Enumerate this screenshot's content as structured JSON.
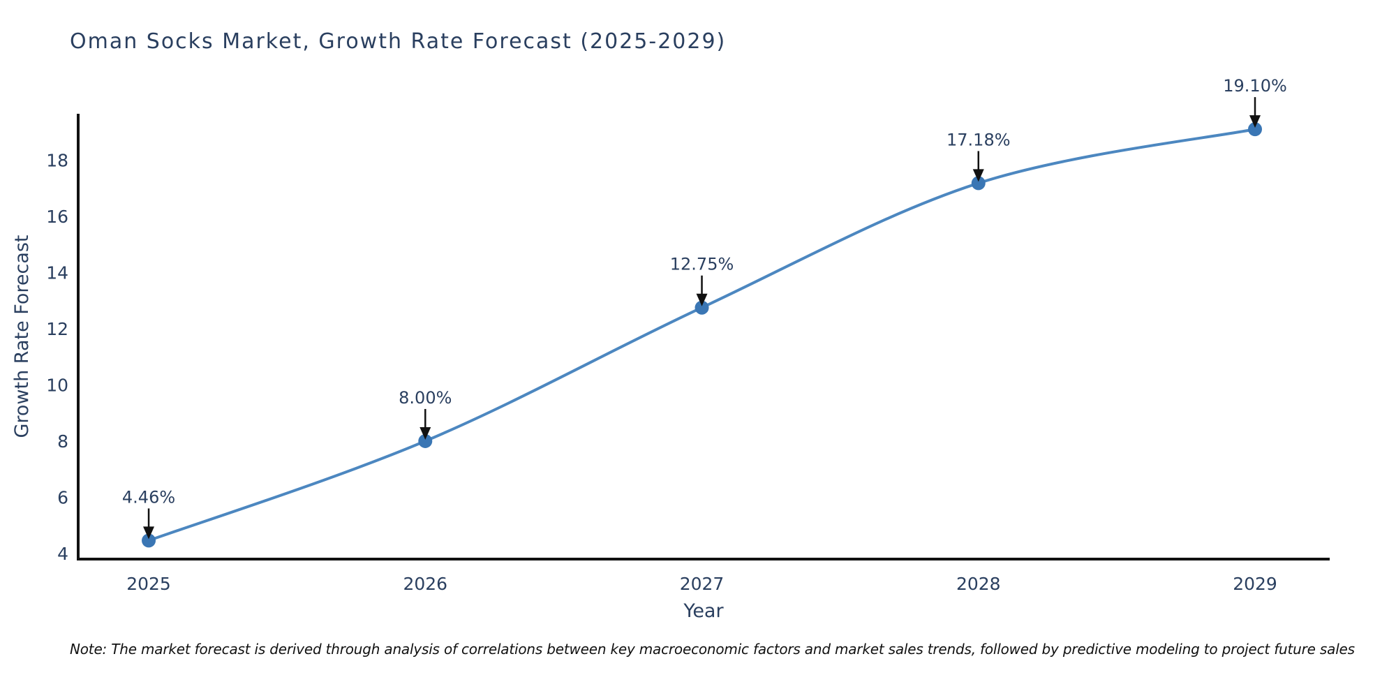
{
  "title": "Oman Socks Market, Growth Rate Forecast (2025-2029)",
  "note": "Note: The market forecast is derived through analysis of correlations between key macroeconomic factors and market sales trends, followed by predictive modeling to project future sales",
  "chart_data": {
    "type": "line",
    "title": "Oman Socks Market, Growth Rate Forecast (2025-2029)",
    "xlabel": "Year",
    "ylabel": "Growth Rate Forecast",
    "x": [
      2025,
      2026,
      2027,
      2028,
      2029
    ],
    "x_tick_labels": [
      "2025",
      "2026",
      "2027",
      "2028",
      "2029"
    ],
    "series": [
      {
        "name": "Growth Rate Forecast",
        "values": [
          4.46,
          8.0,
          12.75,
          17.18,
          19.1
        ]
      }
    ],
    "point_labels": [
      "4.46%",
      "8.00%",
      "12.75%",
      "17.18%",
      "19.10%"
    ],
    "y_ticks": [
      4,
      6,
      8,
      10,
      12,
      14,
      16,
      18
    ],
    "xlim": [
      2024.745,
      2029.27
    ],
    "ylim": [
      3.8,
      19.65
    ],
    "grid": false,
    "legend": false,
    "line_shape": "spline",
    "colors": {
      "line": "#4c87c0",
      "marker": "#3a76b4",
      "axis": "#111111",
      "text": "#2a3f5f",
      "annotation_arrow": "#111111"
    }
  }
}
